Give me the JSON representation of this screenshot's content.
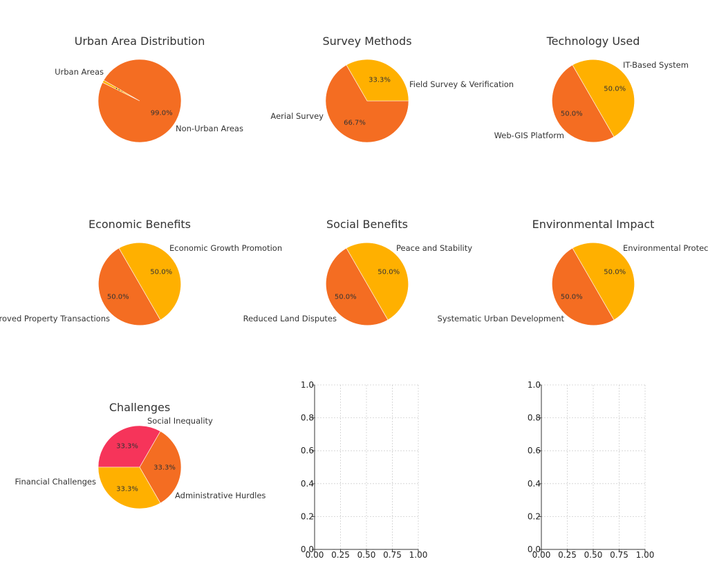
{
  "chart_data": [
    {
      "type": "pie",
      "title": "Urban Area Distribution",
      "labels": [
        "Urban Areas",
        "Non-Urban Areas"
      ],
      "values": [
        1.0,
        99.0
      ],
      "percent_labels": [
        "1.0%",
        "99.0%"
      ],
      "colors": [
        "#FFB000",
        "#F46D22"
      ]
    },
    {
      "type": "pie",
      "title": "Survey Methods",
      "labels": [
        "Field Survey & Verification",
        "Aerial Survey"
      ],
      "values": [
        66.7,
        33.3
      ],
      "percent_labels": [
        "66.7%",
        "33.3%"
      ],
      "colors": [
        "#F46D22",
        "#FFB000"
      ]
    },
    {
      "type": "pie",
      "title": "Technology Used",
      "labels": [
        "IT-Based System",
        "Web-GIS Platform"
      ],
      "values": [
        50.0,
        50.0
      ],
      "percent_labels": [
        "50.0%",
        "50.0%"
      ],
      "colors": [
        "#F46D22",
        "#FFB000"
      ]
    },
    {
      "type": "pie",
      "title": "Economic Benefits",
      "labels": [
        "Economic Growth Promotion",
        "Improved Property Transactions"
      ],
      "values": [
        50.0,
        50.0
      ],
      "percent_labels": [
        "50.0%",
        "50.0%"
      ],
      "colors": [
        "#F46D22",
        "#FFB000"
      ]
    },
    {
      "type": "pie",
      "title": "Social Benefits",
      "labels": [
        "Peace and Stability",
        "Reduced Land Disputes"
      ],
      "values": [
        50.0,
        50.0
      ],
      "percent_labels": [
        "50.0%",
        "50.0%"
      ],
      "colors": [
        "#F46D22",
        "#FFB000"
      ]
    },
    {
      "type": "pie",
      "title": "Environmental Impact",
      "labels": [
        "Environmental Protection",
        "Systematic Urban Development"
      ],
      "values": [
        50.0,
        50.0
      ],
      "percent_labels": [
        "50.0%",
        "50.0%"
      ],
      "colors": [
        "#F46D22",
        "#FFB000"
      ]
    },
    {
      "type": "pie",
      "title": "Challenges",
      "labels": [
        "Social Inequality",
        "Financial Challenges",
        "Administrative Hurdles"
      ],
      "values": [
        33.3,
        33.3,
        33.3
      ],
      "percent_labels": [
        "33.3%",
        "33.3%",
        "33.3%"
      ],
      "colors": [
        "#F6345A",
        "#FFB000",
        "#F46D22"
      ]
    },
    {
      "type": "scatter",
      "title": "",
      "xlim": [
        0,
        1
      ],
      "ylim": [
        0,
        1
      ],
      "x_ticks": [
        "0.00",
        "0.25",
        "0.50",
        "0.75",
        "1.00"
      ],
      "y_ticks": [
        "0.0",
        "0.2",
        "0.4",
        "0.6",
        "0.8",
        "1.0"
      ],
      "grid": true,
      "values": []
    },
    {
      "type": "scatter",
      "title": "",
      "xlim": [
        0,
        1
      ],
      "ylim": [
        0,
        1
      ],
      "x_ticks": [
        "0.00",
        "0.25",
        "0.50",
        "0.75",
        "1.00"
      ],
      "y_ticks": [
        "0.0",
        "0.2",
        "0.4",
        "0.6",
        "0.8",
        "1.0"
      ],
      "grid": true,
      "values": []
    }
  ]
}
